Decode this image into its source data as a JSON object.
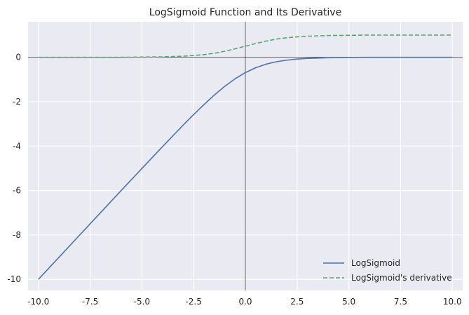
{
  "chart_data": {
    "type": "line",
    "title": "LogSigmoid Function and Its Derivative",
    "xlabel": "",
    "ylabel": "",
    "xlim": [
      -10.5,
      10.5
    ],
    "ylim": [
      -10.5,
      1.6
    ],
    "x_ticks": [
      -10.0,
      -7.5,
      -5.0,
      -2.5,
      0.0,
      2.5,
      5.0,
      7.5,
      10.0
    ],
    "x_tick_labels": [
      "-10.0",
      "-7.5",
      "-5.0",
      "-2.5",
      "0.0",
      "2.5",
      "5.0",
      "7.5",
      "10.0"
    ],
    "y_ticks": [
      0,
      -2,
      -4,
      -6,
      -8,
      -10
    ],
    "y_tick_labels": [
      "0",
      "-2",
      "-4",
      "-6",
      "-8",
      "-10"
    ],
    "grid": true,
    "legend_position": "lower-right",
    "series": [
      {
        "name": "LogSigmoid",
        "style": "solid",
        "color": "#4c72b0",
        "x": [
          -10,
          -9,
          -8,
          -7,
          -6,
          -5,
          -4,
          -3,
          -2.5,
          -2,
          -1.5,
          -1,
          -0.5,
          0,
          0.5,
          1,
          1.5,
          2,
          2.5,
          3,
          4,
          5,
          6,
          7,
          8,
          9,
          10
        ],
        "y": [
          -10.0,
          -9.0,
          -8.0,
          -7.0,
          -6.0,
          -5.01,
          -4.02,
          -3.05,
          -2.58,
          -2.13,
          -1.7,
          -1.31,
          -0.97,
          -0.69,
          -0.47,
          -0.31,
          -0.2,
          -0.13,
          -0.08,
          -0.05,
          -0.02,
          -0.01,
          0.0,
          0.0,
          0.0,
          0.0,
          0.0
        ]
      },
      {
        "name": "LogSigmoid's derivative",
        "style": "dashed",
        "color": "#55a868",
        "x": [
          -10,
          -9,
          -8,
          -7,
          -6,
          -5,
          -4,
          -3,
          -2.5,
          -2,
          -1.5,
          -1,
          -0.5,
          0,
          0.5,
          1,
          1.5,
          2,
          2.5,
          3,
          4,
          5,
          6,
          7,
          8,
          9,
          10
        ],
        "y": [
          0.0,
          0.0,
          0.0,
          0.0,
          0.0,
          0.01,
          0.02,
          0.05,
          0.08,
          0.12,
          0.18,
          0.27,
          0.38,
          0.5,
          0.62,
          0.73,
          0.82,
          0.88,
          0.92,
          0.95,
          0.98,
          0.99,
          1.0,
          1.0,
          1.0,
          1.0,
          1.0
        ]
      }
    ]
  },
  "colors": {
    "plot_background": "#eaeaf2",
    "grid": "#ffffff",
    "axis_lines": "#000000"
  }
}
